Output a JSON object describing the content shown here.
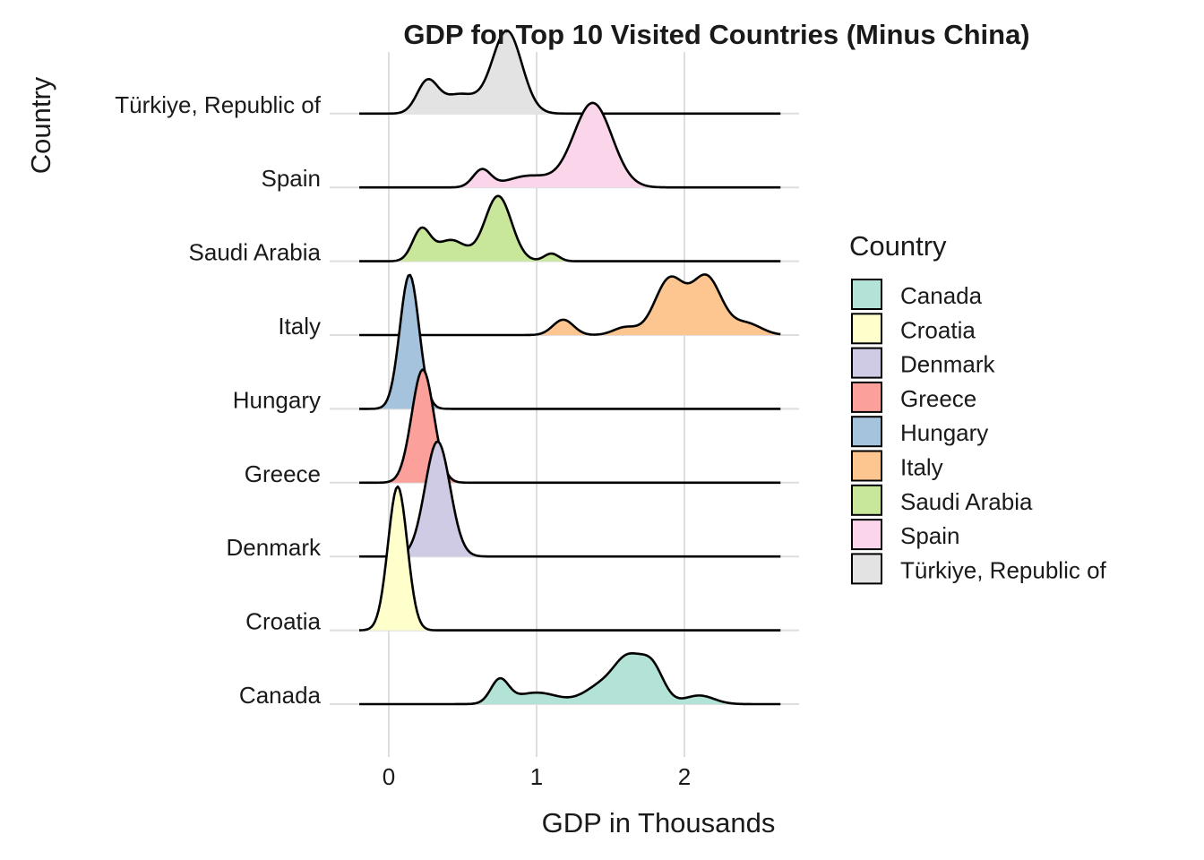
{
  "chart_data": {
    "type": "ridgeline",
    "title": "GDP for Top 10 Visited Countries (Minus China)",
    "xlabel": "GDP in Thousands",
    "ylabel": "Country",
    "xlim": [
      -0.2,
      2.65
    ],
    "x_ticks": [
      0,
      1,
      2
    ],
    "x_tick_labels": [
      "0",
      "1",
      "2"
    ],
    "categories": [
      "Canada",
      "Croatia",
      "Denmark",
      "Greece",
      "Hungary",
      "Italy",
      "Saudi Arabia",
      "Spain",
      "Türkiye, Republic of"
    ],
    "legend_title": "Country",
    "legend_position": "right",
    "grid": true,
    "series": [
      {
        "name": "Canada",
        "color": "#b3e2d6",
        "peaks": [
          {
            "x": 0.75,
            "sd": 0.06,
            "h": 0.24
          },
          {
            "x": 1.0,
            "sd": 0.15,
            "h": 0.12
          },
          {
            "x": 1.45,
            "sd": 0.12,
            "h": 0.2
          },
          {
            "x": 1.62,
            "sd": 0.09,
            "h": 0.4
          },
          {
            "x": 1.78,
            "sd": 0.08,
            "h": 0.38
          },
          {
            "x": 2.1,
            "sd": 0.1,
            "h": 0.09
          }
        ]
      },
      {
        "name": "Croatia",
        "color": "#ffffcc",
        "peaks": [
          {
            "x": 0.06,
            "sd": 0.065,
            "h": 1.5
          }
        ]
      },
      {
        "name": "Denmark",
        "color": "#cfcbe4",
        "peaks": [
          {
            "x": 0.33,
            "sd": 0.085,
            "h": 1.2
          }
        ]
      },
      {
        "name": "Greece",
        "color": "#fba09a",
        "peaks": [
          {
            "x": 0.23,
            "sd": 0.075,
            "h": 1.18
          }
        ]
      },
      {
        "name": "Hungary",
        "color": "#a6c3de",
        "peaks": [
          {
            "x": 0.14,
            "sd": 0.065,
            "h": 1.4
          }
        ]
      },
      {
        "name": "Italy",
        "color": "#fdc690",
        "peaks": [
          {
            "x": 1.18,
            "sd": 0.07,
            "h": 0.16
          },
          {
            "x": 1.6,
            "sd": 0.08,
            "h": 0.08
          },
          {
            "x": 1.9,
            "sd": 0.1,
            "h": 0.58
          },
          {
            "x": 2.15,
            "sd": 0.1,
            "h": 0.6
          },
          {
            "x": 2.42,
            "sd": 0.1,
            "h": 0.12
          }
        ]
      },
      {
        "name": "Saudi Arabia",
        "color": "#c8e79a",
        "peaks": [
          {
            "x": 0.22,
            "sd": 0.06,
            "h": 0.32
          },
          {
            "x": 0.42,
            "sd": 0.1,
            "h": 0.22
          },
          {
            "x": 0.74,
            "sd": 0.09,
            "h": 0.68
          },
          {
            "x": 1.1,
            "sd": 0.05,
            "h": 0.08
          }
        ]
      },
      {
        "name": "Spain",
        "color": "#fbd5ea",
        "peaks": [
          {
            "x": 0.63,
            "sd": 0.06,
            "h": 0.18
          },
          {
            "x": 0.95,
            "sd": 0.15,
            "h": 0.12
          },
          {
            "x": 1.38,
            "sd": 0.13,
            "h": 0.88
          }
        ]
      },
      {
        "name": "Türkiye, Republic of",
        "color": "#e3e3e3",
        "peaks": [
          {
            "x": 0.26,
            "sd": 0.07,
            "h": 0.32
          },
          {
            "x": 0.48,
            "sd": 0.12,
            "h": 0.2
          },
          {
            "x": 0.8,
            "sd": 0.1,
            "h": 0.86
          }
        ]
      }
    ]
  }
}
